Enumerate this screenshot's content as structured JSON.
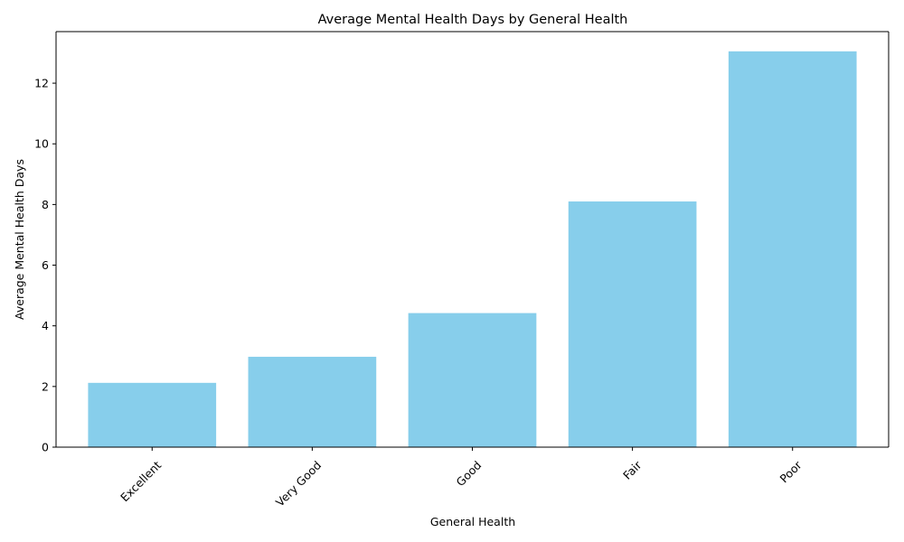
{
  "chart_data": {
    "type": "bar",
    "title": "Average Mental Health Days by General Health",
    "xlabel": "General Health",
    "ylabel": "Average Mental Health Days",
    "categories": [
      "Excellent",
      "Very Good",
      "Good",
      "Fair",
      "Poor"
    ],
    "values": [
      2.12,
      2.98,
      4.42,
      8.1,
      13.05
    ],
    "ylim": [
      0,
      13.7
    ],
    "yticks": [
      0,
      2,
      4,
      6,
      8,
      10,
      12
    ],
    "xtick_rotation_deg": 45,
    "grid": false,
    "legend": "none",
    "bar_color": "#87CEEB"
  }
}
